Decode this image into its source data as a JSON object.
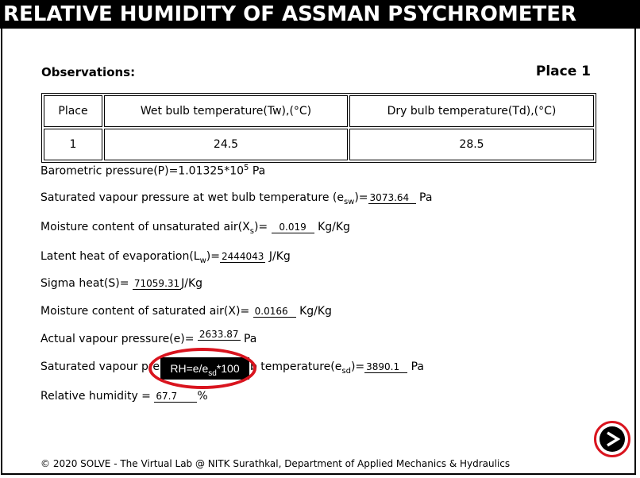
{
  "title": "RELATIVE HUMIDITY OF ASSMAN PSYCHROMETER",
  "observations_label": "Observations:",
  "place_label": "Place 1",
  "table": {
    "headers": [
      "Place",
      "Wet bulb temperature(Tw),(°C)",
      "Dry bulb temperature(Td),(°C)"
    ],
    "row": [
      "1",
      "24.5",
      "28.5"
    ]
  },
  "barometric": {
    "label": "Barometric pressure(P)=1.01325*10",
    "exp": "5",
    "unit": "Pa"
  },
  "esw": {
    "prefix": "Saturated vapour pressure at wet bulb temperature (e",
    "sub": "sw",
    "suffix": ")=",
    "value": "3073.64",
    "unit": "Pa"
  },
  "xs": {
    "prefix": "Moisture content of unsaturated air(X",
    "sub": "s",
    "suffix": ")=",
    "value": "0.019",
    "unit": "Kg/Kg"
  },
  "lw": {
    "prefix": "Latent heat of evaporation(L",
    "sub": "w",
    "suffix": ")=",
    "value": "2444043",
    "unit": "J/Kg"
  },
  "sigma": {
    "prefix": "Sigma heat(S)=",
    "value": "71059.31",
    "unit": "J/Kg"
  },
  "x": {
    "prefix": "Moisture content of saturated air(X)=",
    "value": "0.0166",
    "unit": "Kg/Kg"
  },
  "e": {
    "prefix": "Actual vapour pressure(e)=",
    "value": "2633.87",
    "unit": "Pa"
  },
  "esd": {
    "prefix": "Saturated vapour pre",
    "mid": "b temperature(e",
    "sub": "sd",
    "suffix": ")=",
    "value": "3890.1",
    "unit": "Pa"
  },
  "rh": {
    "prefix": "Relative humidity =",
    "value": "67.7",
    "unit": "%"
  },
  "tooltip": {
    "a": "RH=e/e",
    "sub": "sd",
    "b": "*100"
  },
  "footer": "© 2020 SOLVE - The Virtual Lab @ NITK Surathkal, Department of Applied Mechanics & Hydraulics",
  "colors": {
    "highlight": "#d9141e",
    "title_bg": "#000000"
  },
  "icons": {
    "next": "next-arrow-icon"
  }
}
